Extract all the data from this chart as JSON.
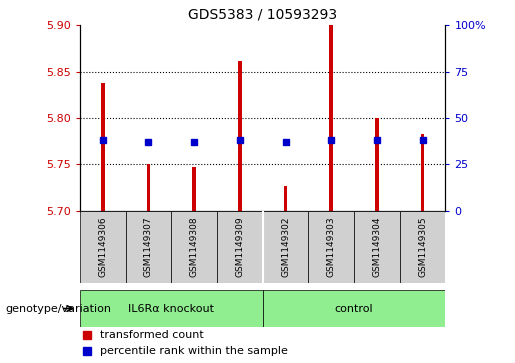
{
  "title": "GDS5383 / 10593293",
  "samples": [
    "GSM1149306",
    "GSM1149307",
    "GSM1149308",
    "GSM1149309",
    "GSM1149302",
    "GSM1149303",
    "GSM1149304",
    "GSM1149305"
  ],
  "transformed_counts": [
    5.838,
    5.75,
    5.747,
    5.862,
    5.727,
    5.9,
    5.8,
    5.783
  ],
  "percentile_rank_pct": [
    38,
    37,
    37,
    38,
    37,
    38,
    38,
    38
  ],
  "ylim_left": [
    5.7,
    5.9
  ],
  "ylim_right": [
    0,
    100
  ],
  "yticks_left": [
    5.7,
    5.75,
    5.8,
    5.85,
    5.9
  ],
  "yticks_right": [
    0,
    25,
    50,
    75,
    100
  ],
  "groups": [
    {
      "label": "IL6Rα knockout",
      "start": 0,
      "end": 4
    },
    {
      "label": "control",
      "start": 4,
      "end": 8
    }
  ],
  "bar_color": "#cc0000",
  "dot_color": "#0000cc",
  "bar_width": 0.08,
  "sample_box_color": "#d0d0d0",
  "group_box_color": "#90ee90",
  "legend_items": [
    "transformed count",
    "percentile rank within the sample"
  ],
  "genotype_label": "genotype/variation",
  "grid_ticks": [
    5.75,
    5.8,
    5.85
  ]
}
